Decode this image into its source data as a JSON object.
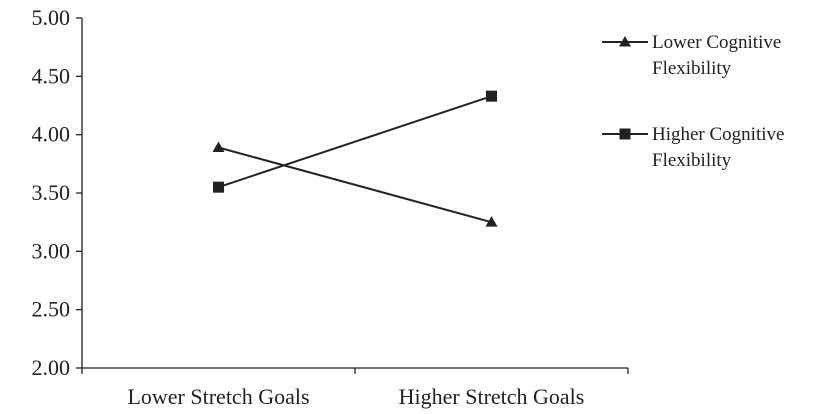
{
  "chart_data": {
    "type": "line",
    "categories": [
      "Lower Stretch Goals",
      "Higher Stretch Goals"
    ],
    "series": [
      {
        "name": "Lower Cognitive Flexibility",
        "name_lines": [
          "Lower Cognitive",
          "Flexibility"
        ],
        "marker": "triangle",
        "values": [
          3.89,
          3.25
        ]
      },
      {
        "name": "Higher Cognitive Flexibility",
        "name_lines": [
          "Higher Cognitive",
          "Flexibility"
        ],
        "marker": "square",
        "values": [
          3.55,
          4.33
        ]
      }
    ],
    "yticks": [
      "5.00",
      "4.50",
      "4.00",
      "3.50",
      "3.00",
      "2.50",
      "2.00"
    ],
    "ylim": [
      2.0,
      5.0
    ],
    "title": "",
    "xlabel": "",
    "ylabel": "",
    "grid": false,
    "legend_position": "right",
    "colors": {
      "line": "#222222",
      "axis": "#222222",
      "text": "#222222"
    }
  }
}
